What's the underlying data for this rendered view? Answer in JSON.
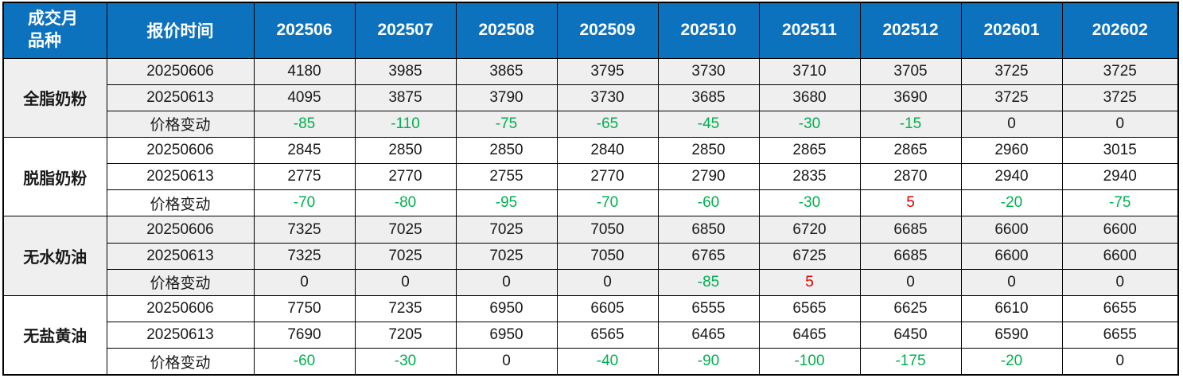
{
  "table": {
    "corner": {
      "top": "成交月",
      "bottom": "品种"
    },
    "quote_time_header": "报价时间",
    "months": [
      "202506",
      "202507",
      "202508",
      "202509",
      "202510",
      "202511",
      "202512",
      "202601",
      "202602"
    ],
    "products": [
      {
        "name": "全脂奶粉",
        "banded": true,
        "rows": [
          {
            "label": "20250606",
            "change": false,
            "values": [
              4180,
              3985,
              3865,
              3795,
              3730,
              3710,
              3705,
              3725,
              3725
            ]
          },
          {
            "label": "20250613",
            "change": false,
            "values": [
              4095,
              3875,
              3790,
              3730,
              3685,
              3680,
              3690,
              3725,
              3725
            ]
          },
          {
            "label": "价格变动",
            "change": true,
            "values": [
              -85,
              -110,
              -75,
              -65,
              -45,
              -30,
              -15,
              0,
              0
            ]
          }
        ]
      },
      {
        "name": "脱脂奶粉",
        "banded": false,
        "rows": [
          {
            "label": "20250606",
            "change": false,
            "values": [
              2845,
              2850,
              2850,
              2840,
              2850,
              2865,
              2865,
              2960,
              3015
            ]
          },
          {
            "label": "20250613",
            "change": false,
            "values": [
              2775,
              2770,
              2755,
              2770,
              2790,
              2835,
              2870,
              2940,
              2940
            ]
          },
          {
            "label": "价格变动",
            "change": true,
            "values": [
              -70,
              -80,
              -95,
              -70,
              -60,
              -30,
              5,
              -20,
              -75
            ]
          }
        ]
      },
      {
        "name": "无水奶油",
        "banded": true,
        "rows": [
          {
            "label": "20250606",
            "change": false,
            "values": [
              7325,
              7025,
              7025,
              7050,
              6850,
              6720,
              6685,
              6600,
              6600
            ]
          },
          {
            "label": "20250613",
            "change": false,
            "values": [
              7325,
              7025,
              7025,
              7050,
              6765,
              6725,
              6685,
              6600,
              6600
            ]
          },
          {
            "label": "价格变动",
            "change": true,
            "values": [
              0,
              0,
              0,
              0,
              -85,
              5,
              0,
              0,
              0
            ]
          }
        ]
      },
      {
        "name": "无盐黄油",
        "banded": false,
        "rows": [
          {
            "label": "20250606",
            "change": false,
            "values": [
              7750,
              7235,
              6950,
              6605,
              6555,
              6565,
              6625,
              6610,
              6655
            ]
          },
          {
            "label": "20250613",
            "change": false,
            "values": [
              7690,
              7205,
              6950,
              6565,
              6465,
              6465,
              6450,
              6590,
              6655
            ]
          },
          {
            "label": "价格变动",
            "change": true,
            "values": [
              -60,
              -30,
              0,
              -40,
              -90,
              -100,
              -175,
              -20,
              0
            ]
          }
        ]
      }
    ]
  },
  "colors": {
    "header_bg": "#0d72bd",
    "header_text": "#ffffff",
    "band_bg": "#efefef",
    "negative": "#00b050",
    "positive": "#e00000",
    "grid": "#000000"
  }
}
